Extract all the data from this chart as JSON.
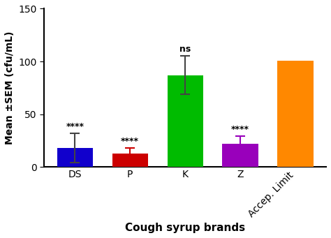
{
  "categories": [
    "DS",
    "P",
    "K",
    "Z",
    "Accep. Limit"
  ],
  "values": [
    18,
    13,
    87,
    22,
    101
  ],
  "errors": [
    14,
    5,
    18,
    7,
    0
  ],
  "bar_colors": [
    "#1100CC",
    "#CC0000",
    "#00BB00",
    "#9900BB",
    "#FF8800"
  ],
  "error_colors": [
    "#444444",
    "#CC0000",
    "#444444",
    "#9900BB",
    "#FF8800"
  ],
  "annotations": [
    "****",
    "****",
    "ns",
    "****",
    ""
  ],
  "xlabel": "Cough syrup brands",
  "ylabel": "Mean ±SEM (cfu/mL)",
  "ylim": [
    0,
    150
  ],
  "yticks": [
    0,
    50,
    100,
    150
  ],
  "xlabel_fontsize": 11,
  "ylabel_fontsize": 10,
  "annot_fontsize": 9,
  "tick_fontsize": 10,
  "bar_width": 0.65,
  "background_color": "#ffffff",
  "capsize": 5
}
